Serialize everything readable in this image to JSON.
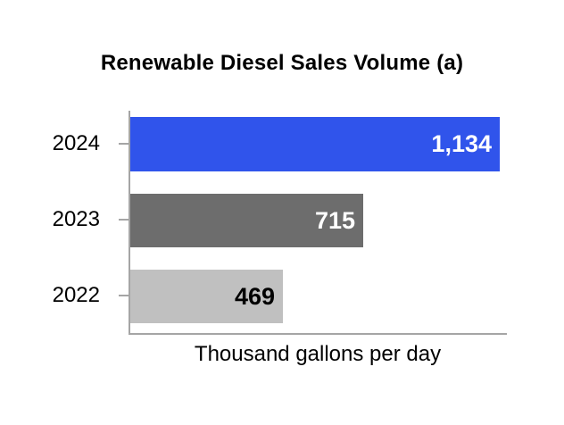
{
  "chart_data": {
    "type": "bar",
    "orientation": "horizontal",
    "title": "Renewable Diesel Sales Volume (a)",
    "xlabel": "Thousand gallons per day",
    "ylabel": "",
    "categories": [
      "2024",
      "2023",
      "2022"
    ],
    "values": [
      1134,
      715,
      469
    ],
    "value_labels": [
      "1,134",
      "715",
      "469"
    ],
    "xlim": [
      0,
      1156
    ],
    "grid": false,
    "legend": null,
    "bar_colors": [
      "#3054eb",
      "#6d6d6d",
      "#c0c0c0"
    ],
    "value_label_colors": [
      "#ffffff",
      "#ffffff",
      "#000000"
    ],
    "axis_color": "#a5a5a5",
    "text_color": "#000000"
  }
}
